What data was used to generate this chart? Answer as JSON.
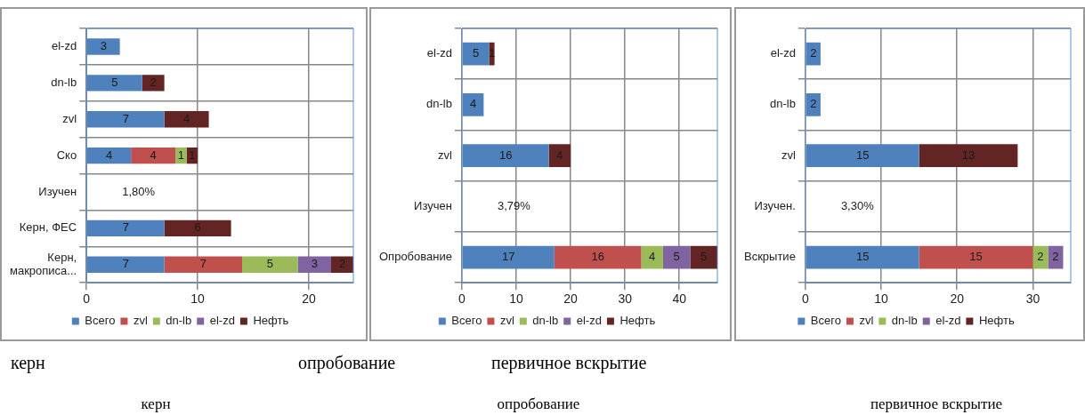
{
  "chart_data": [
    {
      "type": "bar",
      "orientation": "horizontal",
      "stacked": true,
      "categories": [
        "el-zd",
        "dn-lb",
        "zvl",
        "Ско",
        "Изучен",
        "Керн, ФЕС",
        "Керн, макрописа..."
      ],
      "series": [
        {
          "name": "Всего",
          "color": "#4f81bd",
          "values": [
            3,
            5,
            7,
            4,
            null,
            7,
            7
          ]
        },
        {
          "name": "zvl",
          "color": "#c0504d",
          "values": [
            null,
            null,
            null,
            4,
            null,
            null,
            7
          ]
        },
        {
          "name": "dn-lb",
          "color": "#9bbb59",
          "values": [
            null,
            null,
            null,
            1,
            null,
            null,
            5
          ]
        },
        {
          "name": "el-zd",
          "color": "#8064a2",
          "values": [
            null,
            null,
            null,
            null,
            null,
            null,
            3
          ]
        },
        {
          "name": "Нефть",
          "color": "#632523",
          "values": [
            null,
            2,
            4,
            1,
            null,
            6,
            2
          ]
        }
      ],
      "xlim": [
        0,
        24
      ],
      "xticks": [
        0,
        10,
        20
      ],
      "grid": true,
      "legend": "bottom",
      "data_labels": true,
      "annotations": [
        "1,80%",
        "керн",
        "керн"
      ]
    },
    {
      "type": "bar",
      "orientation": "horizontal",
      "stacked": true,
      "categories": [
        "el-zd",
        "dn-lb",
        "zvl",
        "Изучен",
        "Опробование"
      ],
      "series": [
        {
          "name": "Всего",
          "color": "#4f81bd",
          "values": [
            5,
            4,
            16,
            null,
            17
          ]
        },
        {
          "name": "zvl",
          "color": "#c0504d",
          "values": [
            null,
            null,
            null,
            null,
            16
          ]
        },
        {
          "name": "dn-lb",
          "color": "#9bbb59",
          "values": [
            null,
            null,
            null,
            null,
            4
          ]
        },
        {
          "name": "el-zd",
          "color": "#8064a2",
          "values": [
            null,
            null,
            null,
            null,
            5
          ]
        },
        {
          "name": "Нефть",
          "color": "#632523",
          "values": [
            1,
            null,
            4,
            null,
            5
          ]
        }
      ],
      "xlim": [
        0,
        47
      ],
      "xticks": [
        0,
        10,
        20,
        30,
        40
      ],
      "grid": true,
      "legend": "bottom",
      "data_labels": true,
      "annotations": [
        "3,79%",
        "опробование",
        "опробование"
      ]
    },
    {
      "type": "bar",
      "orientation": "horizontal",
      "stacked": true,
      "categories": [
        "el-zd",
        "dn-lb",
        "zvl",
        "Изучен.",
        "Вскрытие"
      ],
      "series": [
        {
          "name": "Всего",
          "color": "#4f81bd",
          "values": [
            2,
            2,
            15,
            null,
            15
          ]
        },
        {
          "name": "zvl",
          "color": "#c0504d",
          "values": [
            null,
            null,
            null,
            null,
            15
          ]
        },
        {
          "name": "dn-lb",
          "color": "#9bbb59",
          "values": [
            null,
            null,
            null,
            null,
            2
          ]
        },
        {
          "name": "el-zd",
          "color": "#8064a2",
          "values": [
            null,
            null,
            null,
            null,
            2
          ]
        },
        {
          "name": "Нефть",
          "color": "#632523",
          "values": [
            null,
            null,
            13,
            null,
            null
          ]
        }
      ],
      "xlim": [
        0,
        35
      ],
      "xticks": [
        0,
        10,
        20,
        30
      ],
      "grid": true,
      "legend": "bottom",
      "data_labels": true,
      "annotations": [
        "3,30%",
        "первичное вскрытие",
        "первичное вскрытие"
      ]
    }
  ]
}
